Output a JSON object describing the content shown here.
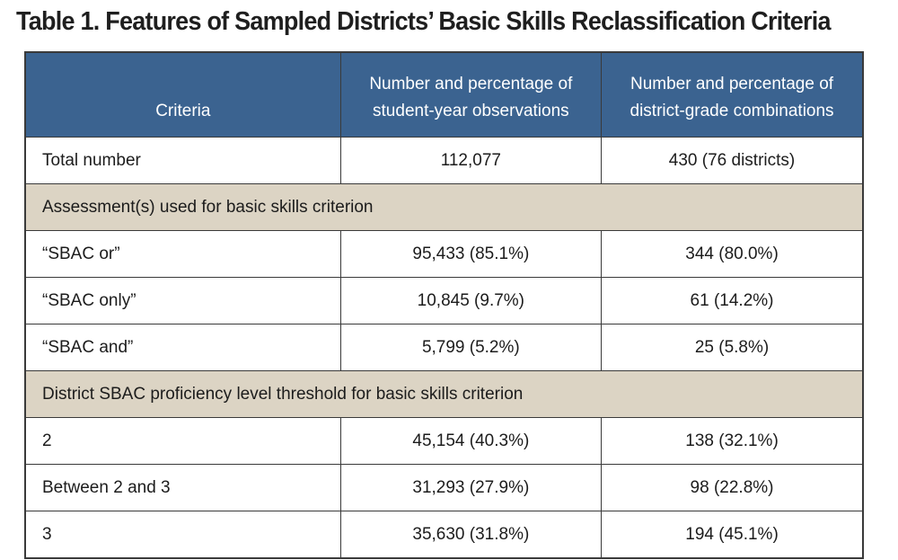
{
  "title": "Table 1. Features of Sampled Districts’ Basic Skills Reclassification Criteria",
  "colors": {
    "header_bg": "#3b6390",
    "section_bg": "#dcd4c4"
  },
  "headers": [
    "Criteria",
    "Number and percentage of student-year observations",
    "Number and percentage of district-grade combinations"
  ],
  "rows": [
    {
      "type": "data",
      "label": "Total number",
      "obs": "112,077",
      "dist": "430 (76 districts)"
    },
    {
      "type": "section",
      "label": "Assessment(s) used for basic skills criterion"
    },
    {
      "type": "data",
      "label": "“SBAC or”",
      "obs": "95,433 (85.1%)",
      "dist": "344 (80.0%)"
    },
    {
      "type": "data",
      "label": "“SBAC only”",
      "obs": "10,845 (9.7%)",
      "dist": "61 (14.2%)"
    },
    {
      "type": "data",
      "label": "“SBAC and”",
      "obs": "5,799 (5.2%)",
      "dist": "25 (5.8%)"
    },
    {
      "type": "section",
      "label": "District SBAC proficiency level threshold for basic skills criterion"
    },
    {
      "type": "data",
      "label": "2",
      "obs": "45,154 (40.3%)",
      "dist": "138 (32.1%)"
    },
    {
      "type": "data",
      "label": "Between 2 and 3",
      "obs": "31,293 (27.9%)",
      "dist": "98 (22.8%)"
    },
    {
      "type": "data",
      "label": "3",
      "obs": "35,630 (31.8%)",
      "dist": "194 (45.1%)"
    }
  ]
}
